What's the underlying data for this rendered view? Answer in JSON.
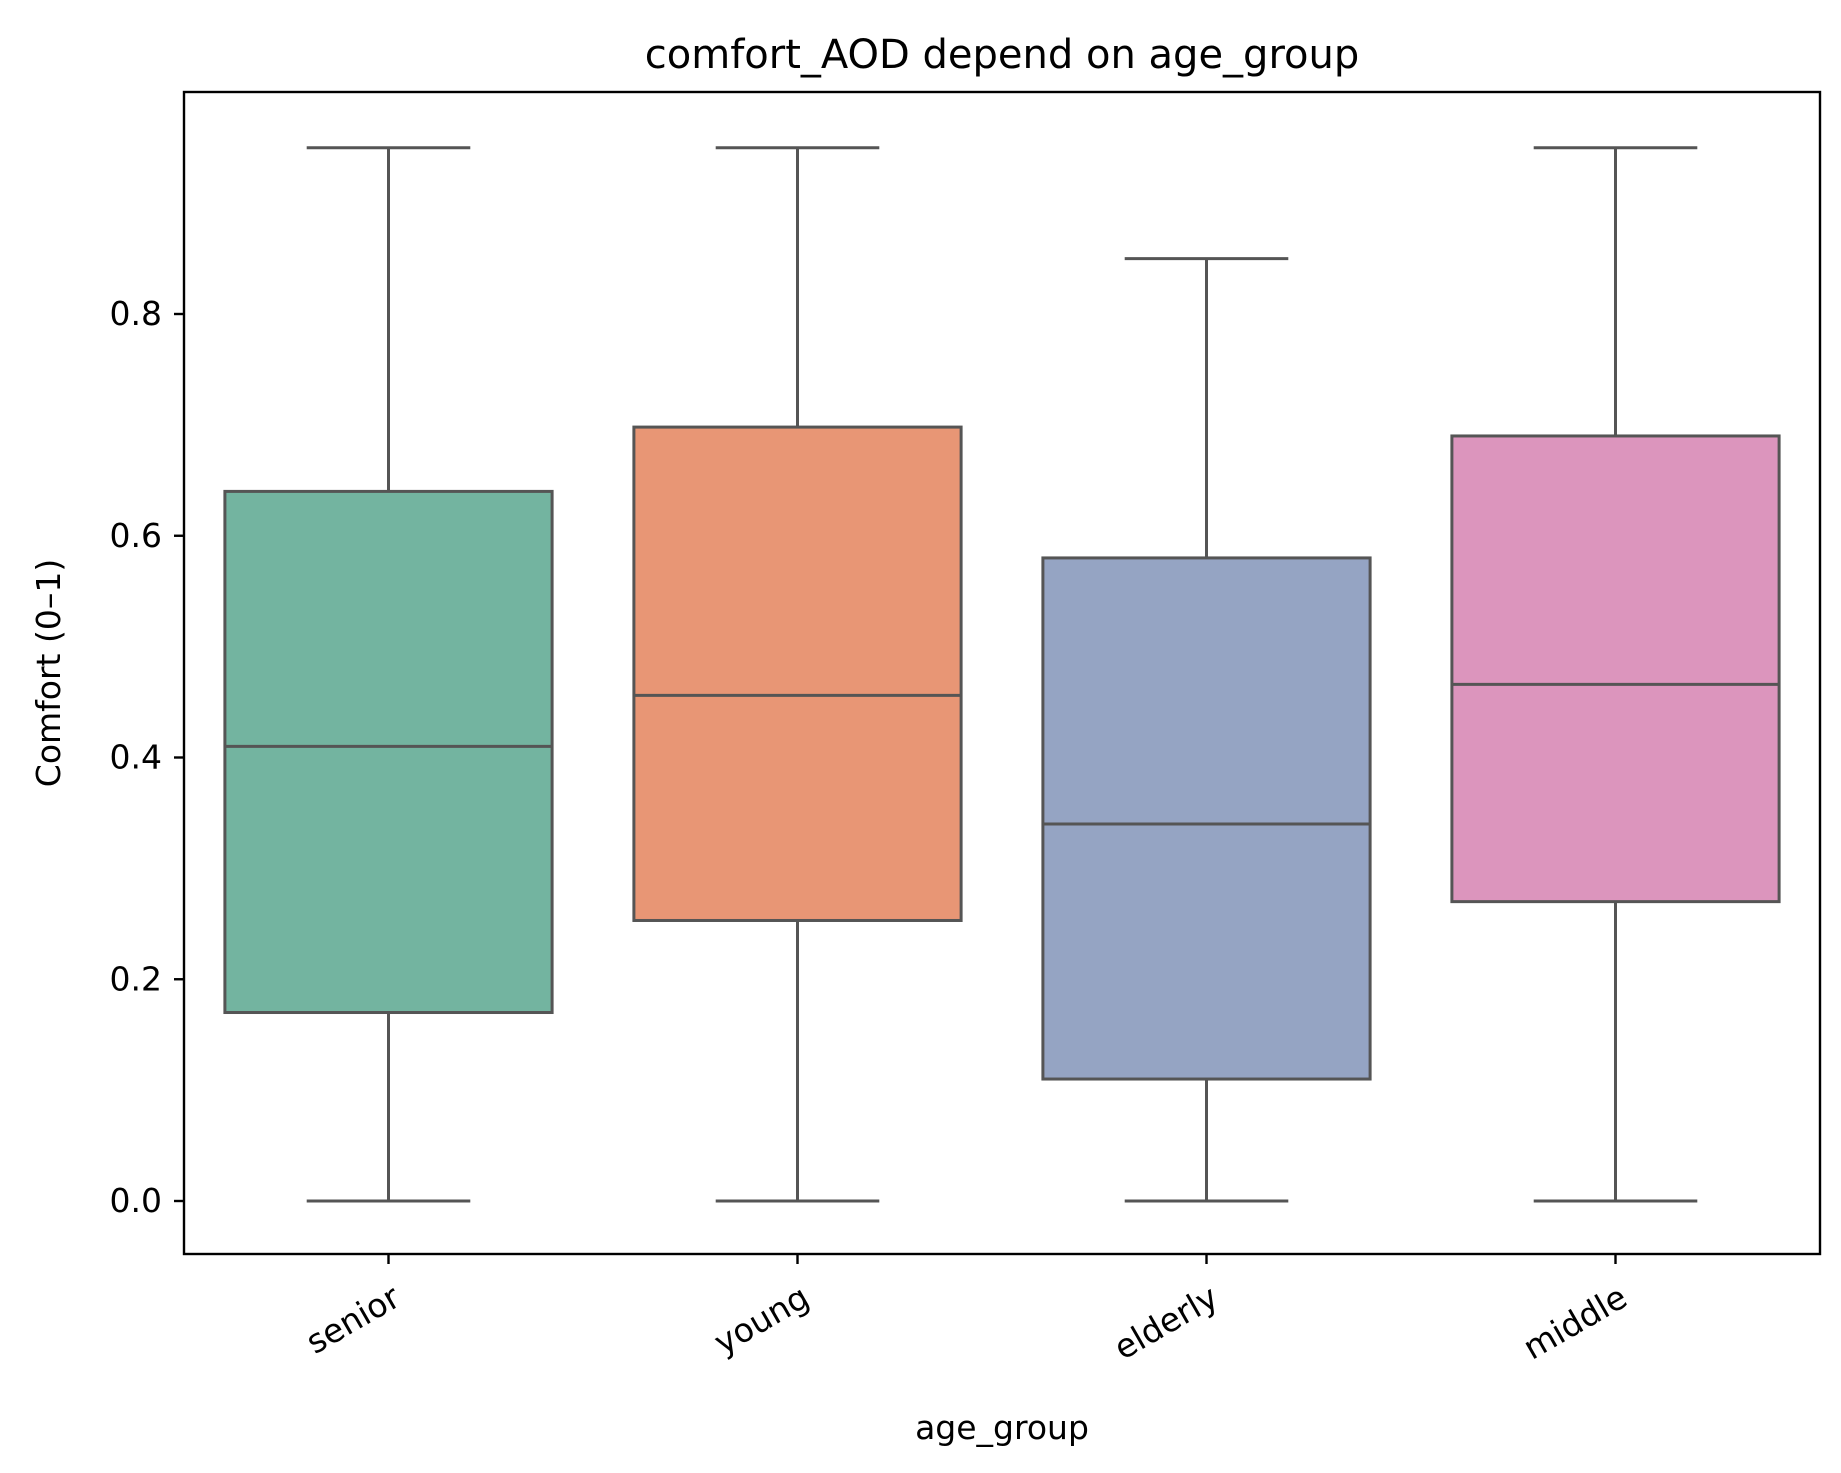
{
  "chart_data": {
    "type": "box",
    "title": "comfort_AOD depend on age_group",
    "xlabel": "age_group",
    "ylabel": "Comfort (0–1)",
    "ylim": [
      -0.048,
      0.99
    ],
    "yticks": [
      0.0,
      0.2,
      0.4,
      0.6,
      0.8
    ],
    "ytick_labels": [
      "0.0",
      "0.2",
      "0.4",
      "0.6",
      "0.8"
    ],
    "grid": false,
    "categories": [
      "senior",
      "young",
      "elderly",
      "middle"
    ],
    "boxes": [
      {
        "category": "senior",
        "whisker_low": 0.0,
        "q1": 0.17,
        "median": 0.41,
        "q3": 0.64,
        "whisker_high": 0.95,
        "color": "#73b4a0"
      },
      {
        "category": "young",
        "whisker_low": 0.0,
        "q1": 0.253,
        "median": 0.456,
        "q3": 0.698,
        "whisker_high": 0.95,
        "color": "#e89675"
      },
      {
        "category": "elderly",
        "whisker_low": 0.0,
        "q1": 0.11,
        "median": 0.34,
        "q3": 0.58,
        "whisker_high": 0.85,
        "color": "#95a4c3"
      },
      {
        "category": "middle",
        "whisker_low": 0.0,
        "q1": 0.27,
        "median": 0.466,
        "q3": 0.69,
        "whisker_high": 0.95,
        "color": "#dc95bd"
      }
    ],
    "line_color": "#555555"
  }
}
